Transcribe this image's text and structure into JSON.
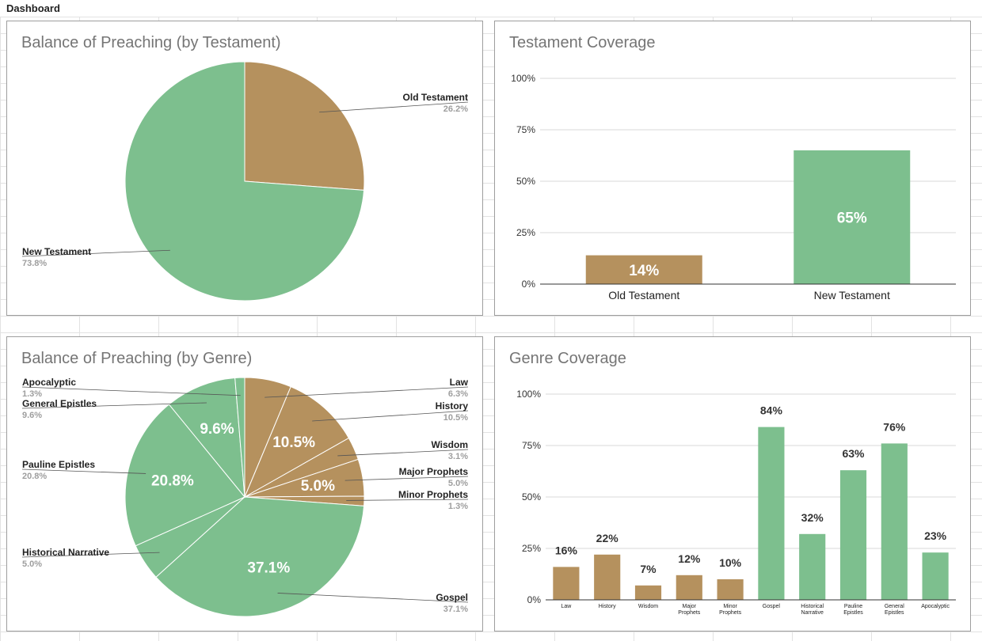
{
  "sheet": {
    "title": "Dashboard"
  },
  "colors": {
    "ot": "#b5915e",
    "nt": "#7dbf8e",
    "grid": "#d9d9d9",
    "axis": "#333333",
    "title": "#757575",
    "pct": "#9e9e9e"
  },
  "chart_data": [
    {
      "type": "pie",
      "title": "Balance of Preaching (by Testament)",
      "slices": [
        {
          "label": "Old Testament",
          "value": 26.2,
          "pct": "26.2%",
          "group": "ot",
          "side": "right"
        },
        {
          "label": "New Testament",
          "value": 73.8,
          "pct": "73.8%",
          "group": "nt",
          "side": "left"
        }
      ]
    },
    {
      "type": "bar",
      "title": "Testament Coverage",
      "categories": [
        "Old Testament",
        "New Testament"
      ],
      "values": [
        14,
        65
      ],
      "value_labels": [
        "14%",
        "65%"
      ],
      "groups": [
        "ot",
        "nt"
      ],
      "yticks": [
        "0%",
        "25%",
        "50%",
        "75%",
        "100%"
      ],
      "ylim": [
        0,
        100
      ]
    },
    {
      "type": "pie",
      "title": "Balance of Preaching (by Genre)",
      "slices": [
        {
          "label": "Law",
          "value": 6.3,
          "pct": "6.3%",
          "group": "ot",
          "side": "right"
        },
        {
          "label": "History",
          "value": 10.5,
          "pct": "10.5%",
          "group": "ot",
          "side": "right",
          "inner": "10.5%"
        },
        {
          "label": "Wisdom",
          "value": 3.1,
          "pct": "3.1%",
          "group": "ot",
          "side": "right"
        },
        {
          "label": "Major Prophets",
          "value": 5.0,
          "pct": "5.0%",
          "group": "ot",
          "side": "right",
          "inner": "5.0%"
        },
        {
          "label": "Minor Prophets",
          "value": 1.3,
          "pct": "1.3%",
          "group": "ot",
          "side": "right"
        },
        {
          "label": "Gospel",
          "value": 37.1,
          "pct": "37.1%",
          "group": "nt",
          "side": "right",
          "inner": "37.1%"
        },
        {
          "label": "Historical Narrative",
          "value": 5.0,
          "pct": "5.0%",
          "group": "nt",
          "side": "left"
        },
        {
          "label": "Pauline Epistles",
          "value": 20.8,
          "pct": "20.8%",
          "group": "nt",
          "side": "left",
          "inner": "20.8%"
        },
        {
          "label": "General Epistles",
          "value": 9.6,
          "pct": "9.6%",
          "group": "nt",
          "side": "left",
          "inner": "9.6%"
        },
        {
          "label": "Apocalyptic",
          "value": 1.3,
          "pct": "1.3%",
          "group": "nt",
          "side": "left"
        }
      ]
    },
    {
      "type": "bar",
      "title": "Genre Coverage",
      "categories": [
        "Law",
        "History",
        "Wisdom",
        "Major Prophets",
        "Minor Prophets",
        "Gospel",
        "Historical Narrative",
        "Pauline Epistles",
        "General Epistles",
        "Apocalyptic"
      ],
      "values": [
        16,
        22,
        7,
        12,
        10,
        84,
        32,
        63,
        76,
        23
      ],
      "value_labels": [
        "16%",
        "22%",
        "7%",
        "12%",
        "10%",
        "84%",
        "32%",
        "63%",
        "76%",
        "23%"
      ],
      "groups": [
        "ot",
        "ot",
        "ot",
        "ot",
        "ot",
        "nt",
        "nt",
        "nt",
        "nt",
        "nt"
      ],
      "yticks": [
        "0%",
        "25%",
        "50%",
        "75%",
        "100%"
      ],
      "ylim": [
        0,
        100
      ]
    }
  ]
}
